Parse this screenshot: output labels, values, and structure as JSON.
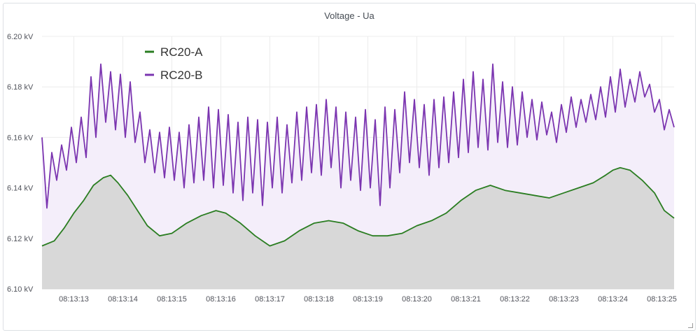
{
  "panel": {
    "title": "Voltage - Ua"
  },
  "chart_data": {
    "type": "area",
    "title": "Voltage - Ua",
    "unit": "kV",
    "ylim": [
      6.1,
      6.2
    ],
    "y_ticks": [
      "6.20 kV",
      "6.18 kV",
      "6.16 kV",
      "6.14 kV",
      "6.12 kV",
      "6.10 kV"
    ],
    "y_tick_values": [
      6.2,
      6.18,
      6.16,
      6.14,
      6.12,
      6.1
    ],
    "x_ticks": [
      "08:13:13",
      "08:13:14",
      "08:13:15",
      "08:13:16",
      "08:13:17",
      "08:13:18",
      "08:13:19",
      "08:13:20",
      "08:13:21",
      "08:13:22",
      "08:13:23",
      "08:13:24",
      "08:13:25"
    ],
    "xlim": [
      "08:13:12.35",
      "08:13:25.25"
    ],
    "grid": true,
    "legend": "top-left",
    "series": [
      {
        "name": "RC20-A",
        "color": "#2a7d21",
        "fill": "#d8d8d8",
        "points": [
          [
            "08:13:12.35",
            6.117
          ],
          [
            "08:13:12.6",
            6.119
          ],
          [
            "08:13:12.8",
            6.124
          ],
          [
            "08:13:13.0",
            6.13
          ],
          [
            "08:13:13.2",
            6.135
          ],
          [
            "08:13:13.4",
            6.141
          ],
          [
            "08:13:13.6",
            6.144
          ],
          [
            "08:13:13.75",
            6.145
          ],
          [
            "08:13:13.9",
            6.142
          ],
          [
            "08:13:14.1",
            6.137
          ],
          [
            "08:13:14.3",
            6.131
          ],
          [
            "08:13:14.5",
            6.125
          ],
          [
            "08:13:14.75",
            6.121
          ],
          [
            "08:13:15.0",
            6.122
          ],
          [
            "08:13:15.3",
            6.126
          ],
          [
            "08:13:15.6",
            6.129
          ],
          [
            "08:13:15.9",
            6.131
          ],
          [
            "08:13:16.1",
            6.13
          ],
          [
            "08:13:16.4",
            6.126
          ],
          [
            "08:13:16.7",
            6.121
          ],
          [
            "08:13:17.0",
            6.117
          ],
          [
            "08:13:17.3",
            6.119
          ],
          [
            "08:13:17.6",
            6.123
          ],
          [
            "08:13:17.9",
            6.126
          ],
          [
            "08:13:18.2",
            6.127
          ],
          [
            "08:13:18.5",
            6.126
          ],
          [
            "08:13:18.8",
            6.123
          ],
          [
            "08:13:19.1",
            6.121
          ],
          [
            "08:13:19.4",
            6.121
          ],
          [
            "08:13:19.7",
            6.122
          ],
          [
            "08:13:20.0",
            6.125
          ],
          [
            "08:13:20.3",
            6.127
          ],
          [
            "08:13:20.6",
            6.13
          ],
          [
            "08:13:20.9",
            6.135
          ],
          [
            "08:13:21.2",
            6.139
          ],
          [
            "08:13:21.5",
            6.141
          ],
          [
            "08:13:21.8",
            6.139
          ],
          [
            "08:13:22.1",
            6.138
          ],
          [
            "08:13:22.4",
            6.137
          ],
          [
            "08:13:22.7",
            6.136
          ],
          [
            "08:13:23.0",
            6.138
          ],
          [
            "08:13:23.3",
            6.14
          ],
          [
            "08:13:23.6",
            6.142
          ],
          [
            "08:13:23.85",
            6.145
          ],
          [
            "08:13:24.0",
            6.147
          ],
          [
            "08:13:24.15",
            6.148
          ],
          [
            "08:13:24.35",
            6.147
          ],
          [
            "08:13:24.6",
            6.143
          ],
          [
            "08:13:24.85",
            6.138
          ],
          [
            "08:13:25.05",
            6.131
          ],
          [
            "08:13:25.25",
            6.128
          ]
        ]
      },
      {
        "name": "RC20-B",
        "color": "#7b35b0",
        "fill": "#f4eefa",
        "points": [
          [
            "08:13:12.35",
            6.16
          ],
          [
            "08:13:12.45",
            6.132
          ],
          [
            "08:13:12.55",
            6.154
          ],
          [
            "08:13:12.65",
            6.143
          ],
          [
            "08:13:12.75",
            6.157
          ],
          [
            "08:13:12.85",
            6.147
          ],
          [
            "08:13:12.95",
            6.164
          ],
          [
            "08:13:13.05",
            6.15
          ],
          [
            "08:13:13.15",
            6.168
          ],
          [
            "08:13:13.25",
            6.152
          ],
          [
            "08:13:13.35",
            6.184
          ],
          [
            "08:13:13.45",
            6.16
          ],
          [
            "08:13:13.55",
            6.189
          ],
          [
            "08:13:13.65",
            6.166
          ],
          [
            "08:13:13.75",
            6.186
          ],
          [
            "08:13:13.85",
            6.163
          ],
          [
            "08:13:13.95",
            6.185
          ],
          [
            "08:13:14.05",
            6.16
          ],
          [
            "08:13:14.15",
            6.182
          ],
          [
            "08:13:14.25",
            6.158
          ],
          [
            "08:13:14.35",
            6.17
          ],
          [
            "08:13:14.45",
            6.15
          ],
          [
            "08:13:14.55",
            6.163
          ],
          [
            "08:13:14.65",
            6.146
          ],
          [
            "08:13:14.75",
            6.162
          ],
          [
            "08:13:14.85",
            6.144
          ],
          [
            "08:13:14.95",
            6.164
          ],
          [
            "08:13:15.05",
            6.143
          ],
          [
            "08:13:15.15",
            6.162
          ],
          [
            "08:13:15.25",
            6.14
          ],
          [
            "08:13:15.35",
            6.165
          ],
          [
            "08:13:15.45",
            6.142
          ],
          [
            "08:13:15.55",
            6.168
          ],
          [
            "08:13:15.65",
            6.143
          ],
          [
            "08:13:15.75",
            6.172
          ],
          [
            "08:13:15.85",
            6.14
          ],
          [
            "08:13:15.95",
            6.171
          ],
          [
            "08:13:16.05",
            6.141
          ],
          [
            "08:13:16.15",
            6.169
          ],
          [
            "08:13:16.25",
            6.138
          ],
          [
            "08:13:16.35",
            6.166
          ],
          [
            "08:13:16.45",
            6.135
          ],
          [
            "08:13:16.55",
            6.168
          ],
          [
            "08:13:16.65",
            6.138
          ],
          [
            "08:13:16.75",
            6.167
          ],
          [
            "08:13:16.85",
            6.133
          ],
          [
            "08:13:16.95",
            6.166
          ],
          [
            "08:13:17.05",
            6.14
          ],
          [
            "08:13:17.15",
            6.168
          ],
          [
            "08:13:17.25",
            6.138
          ],
          [
            "08:13:17.35",
            6.165
          ],
          [
            "08:13:17.45",
            6.142
          ],
          [
            "08:13:17.55",
            6.17
          ],
          [
            "08:13:17.65",
            6.143
          ],
          [
            "08:13:17.75",
            6.172
          ],
          [
            "08:13:17.85",
            6.146
          ],
          [
            "08:13:17.95",
            6.173
          ],
          [
            "08:13:18.05",
            6.145
          ],
          [
            "08:13:18.15",
            6.175
          ],
          [
            "08:13:18.25",
            6.148
          ],
          [
            "08:13:18.35",
            6.172
          ],
          [
            "08:13:18.45",
            6.14
          ],
          [
            "08:13:18.55",
            6.17
          ],
          [
            "08:13:18.65",
            6.143
          ],
          [
            "08:13:18.75",
            6.168
          ],
          [
            "08:13:18.85",
            6.139
          ],
          [
            "08:13:18.95",
            6.171
          ],
          [
            "08:13:19.05",
            6.14
          ],
          [
            "08:13:19.15",
            6.167
          ],
          [
            "08:13:19.25",
            6.133
          ],
          [
            "08:13:19.35",
            6.172
          ],
          [
            "08:13:19.45",
            6.14
          ],
          [
            "08:13:19.55",
            6.171
          ],
          [
            "08:13:19.65",
            6.146
          ],
          [
            "08:13:19.75",
            6.178
          ],
          [
            "08:13:19.85",
            6.15
          ],
          [
            "08:13:19.95",
            6.175
          ],
          [
            "08:13:20.05",
            6.148
          ],
          [
            "08:13:20.15",
            6.173
          ],
          [
            "08:13:20.25",
            6.145
          ],
          [
            "08:13:20.35",
            6.175
          ],
          [
            "08:13:20.45",
            6.148
          ],
          [
            "08:13:20.55",
            6.176
          ],
          [
            "08:13:20.65",
            6.15
          ],
          [
            "08:13:20.75",
            6.178
          ],
          [
            "08:13:20.85",
            6.152
          ],
          [
            "08:13:20.95",
            6.183
          ],
          [
            "08:13:21.05",
            6.154
          ],
          [
            "08:13:21.15",
            6.186
          ],
          [
            "08:13:21.25",
            6.156
          ],
          [
            "08:13:21.35",
            6.183
          ],
          [
            "08:13:21.45",
            6.155
          ],
          [
            "08:13:21.55",
            6.189
          ],
          [
            "08:13:21.65",
            6.158
          ],
          [
            "08:13:21.75",
            6.182
          ],
          [
            "08:13:21.85",
            6.156
          ],
          [
            "08:13:21.95",
            6.18
          ],
          [
            "08:13:22.05",
            6.157
          ],
          [
            "08:13:22.15",
            6.178
          ],
          [
            "08:13:22.25",
            6.16
          ],
          [
            "08:13:22.35",
            6.175
          ],
          [
            "08:13:22.45",
            6.159
          ],
          [
            "08:13:22.55",
            6.174
          ],
          [
            "08:13:22.65",
            6.161
          ],
          [
            "08:13:22.75",
            6.17
          ],
          [
            "08:13:22.85",
            6.158
          ],
          [
            "08:13:22.95",
            6.173
          ],
          [
            "08:13:23.05",
            6.162
          ],
          [
            "08:13:23.15",
            6.176
          ],
          [
            "08:13:23.25",
            6.164
          ],
          [
            "08:13:23.35",
            6.175
          ],
          [
            "08:13:23.45",
            6.166
          ],
          [
            "08:13:23.55",
            6.177
          ],
          [
            "08:13:23.65",
            6.167
          ],
          [
            "08:13:23.75",
            6.18
          ],
          [
            "08:13:23.85",
            6.168
          ],
          [
            "08:13:23.95",
            6.184
          ],
          [
            "08:13:24.05",
            6.17
          ],
          [
            "08:13:24.15",
            6.187
          ],
          [
            "08:13:24.25",
            6.172
          ],
          [
            "08:13:24.35",
            6.183
          ],
          [
            "08:13:24.45",
            6.174
          ],
          [
            "08:13:24.55",
            6.186
          ],
          [
            "08:13:24.65",
            6.176
          ],
          [
            "08:13:24.75",
            6.181
          ],
          [
            "08:13:24.85",
            6.17
          ],
          [
            "08:13:24.95",
            6.175
          ],
          [
            "08:13:25.05",
            6.163
          ],
          [
            "08:13:25.15",
            6.171
          ],
          [
            "08:13:25.25",
            6.164
          ]
        ]
      }
    ]
  }
}
